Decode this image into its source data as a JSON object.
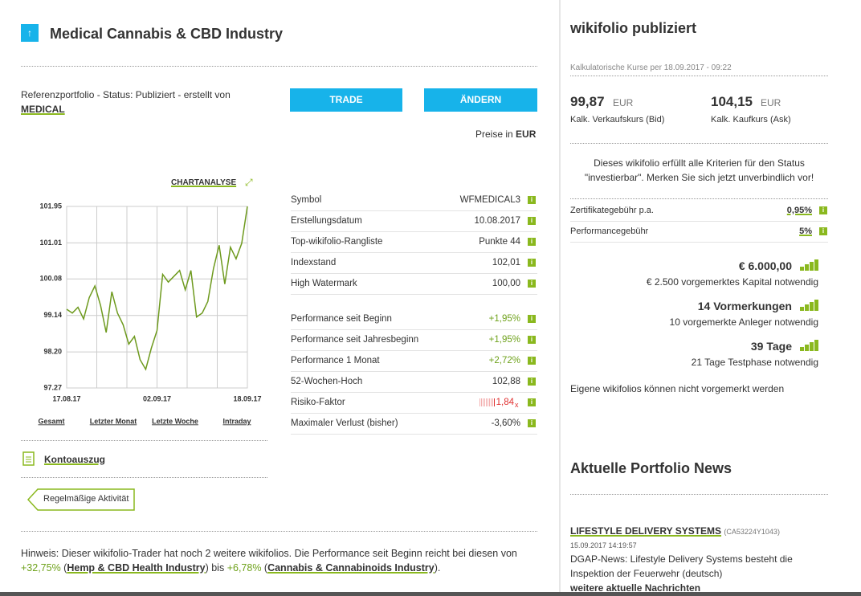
{
  "left": {
    "title": "Medical Cannabis & CBD Industry",
    "status": "Referenzportfolio - Status: Publiziert - erstellt von",
    "author": "MEDICAL",
    "buttons": [
      "TRADE",
      "ÄNDERN"
    ],
    "prices_in": "Preise in",
    "currency": "EUR",
    "chartanalyse": "CHARTANALYSE",
    "ranges": [
      "Gesamt",
      "Letzter Monat",
      "Letzte Woche",
      "Intraday"
    ],
    "stats": [
      {
        "label": "Symbol",
        "value": "WFMEDICAL3"
      },
      {
        "label": "Erstellungsdatum",
        "value": "10.08.2017"
      },
      {
        "label": "Top-wikifolio-Rangliste",
        "value": "Punkte 44"
      },
      {
        "label": "Indexstand",
        "value": "102,01"
      },
      {
        "label": "High Watermark",
        "value": "100,00"
      }
    ],
    "performance": [
      {
        "label": "Performance seit Beginn",
        "value": "+1,95%"
      },
      {
        "label": "Performance seit Jahresbeginn",
        "value": "+1,95%"
      },
      {
        "label": "Performance 1 Monat",
        "value": "+2,72%"
      },
      {
        "label": "52-Wochen-Hoch",
        "value": "102,88"
      },
      {
        "label": "Risiko-Faktor",
        "value": "1,84",
        "unit": "x"
      },
      {
        "label": "Maximaler Verlust (bisher)",
        "value": "-3,60%"
      }
    ],
    "kontoauszug": "Kontoauszug",
    "activity": "Regelmäßige Aktivität",
    "hint": [
      "Hinweis: Dieser wikifolio-Trader hat noch 2 weitere wikifolios. Die Performance seit Beginn reicht bei diesen von ",
      "+32,75%",
      " (",
      "Hemp & CBD Health Industry",
      ") bis ",
      "+6,78%",
      " (",
      "Cannabis & Cannabinoids Industry",
      ")."
    ]
  },
  "chart_data": {
    "type": "line",
    "color": "#6e9a1e",
    "categories": [
      "17.08.17",
      null,
      null,
      null,
      null,
      null,
      null,
      null,
      null,
      null,
      null,
      null,
      null,
      null,
      null,
      null,
      "02.09.17",
      null,
      null,
      null,
      null,
      null,
      null,
      null,
      null,
      null,
      null,
      null,
      null,
      null,
      null,
      null,
      "18.09.17"
    ],
    "values": [
      99.3,
      99.2,
      99.35,
      99.05,
      99.6,
      99.9,
      99.4,
      98.7,
      99.75,
      99.2,
      98.9,
      98.4,
      98.6,
      98.0,
      97.75,
      98.3,
      98.75,
      100.2,
      100.0,
      100.15,
      100.3,
      99.8,
      100.3,
      99.1,
      99.2,
      99.5,
      100.35,
      100.95,
      99.95,
      100.9,
      100.6,
      101.0,
      101.95
    ],
    "ylim": [
      97.27,
      101.95
    ],
    "yticks": [
      97.27,
      {
        "value": 98.2,
        "label": "98.20"
      },
      99.14,
      100.08,
      101.01,
      101.95
    ],
    "grid": true
  },
  "right": {
    "title": "wikifolio publiziert",
    "calc": "Kalkulatorische Kurse per 18.09.2017 - 09:22",
    "bid": {
      "value": "99,87",
      "currency": "EUR",
      "label": "Kalk. Verkaufskurs (Bid)"
    },
    "ask": {
      "value": "104,15",
      "currency": "EUR",
      "label": "Kalk. Kaufkurs (Ask)"
    },
    "invest": [
      "Dieses wikifolio erfüllt alle Kriterien für den Status",
      "\"investierbar\". Merken Sie sich jetzt unverbindlich vor!"
    ],
    "fees": [
      {
        "label": "Zertifikategebühr p.a.",
        "value": "0,95%"
      },
      {
        "label": "Performancegebühr",
        "value": "5%"
      }
    ],
    "criteria": [
      {
        "main": "€ 6.000,00",
        "sub": "€ 2.500 vorgemerktes Kapital notwendig"
      },
      {
        "main": "14 Vormerkungen",
        "sub": "10 vorgemerkte Anleger notwendig"
      },
      {
        "main": "39 Tage",
        "sub": "21 Tage Testphase notwendig"
      }
    ],
    "own": "Eigene wikifolios können nicht vorgemerkt werden",
    "news_title": "Aktuelle Portfolio News",
    "news": {
      "company": "LIFESTYLE DELIVERY SYSTEMS",
      "isin": "(CA53224Y1043)",
      "date": "15.09.2017 14:19:57",
      "text": [
        "DGAP-News: Lifestyle Delivery Systems besteht die",
        "Inspektion der Feuerwehr (deutsch)"
      ],
      "more": "weitere aktuelle Nachrichten"
    }
  }
}
